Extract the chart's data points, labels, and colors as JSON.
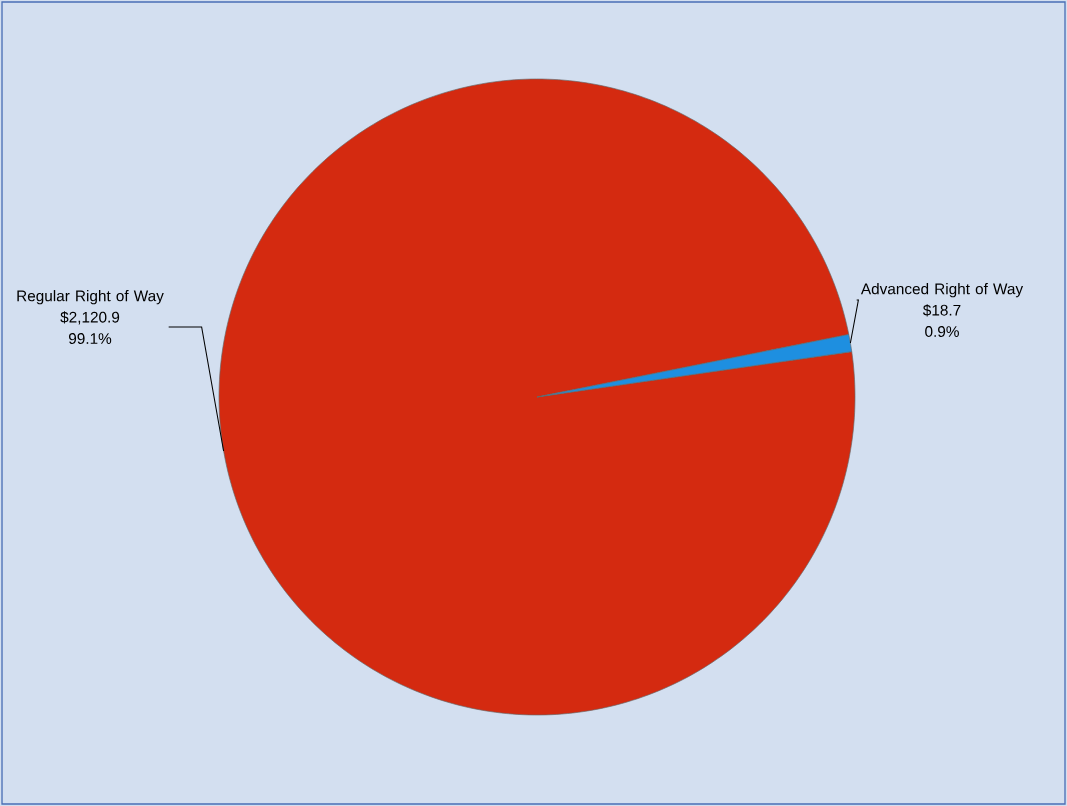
{
  "chart_data": {
    "type": "pie",
    "categories": [
      "Regular Right of Way",
      "Advanced Right of Way"
    ],
    "values": [
      2120.9,
      18.7
    ],
    "colors": [
      "#d42a10",
      "#1e8fe0"
    ],
    "value_labels": [
      "$2,120.9",
      "$18.7"
    ],
    "annotations": [
      {
        "text": "99.1%",
        "x": "Regular Right of Way"
      },
      {
        "text": "0.9%",
        "x": "Advanced Right of Way"
      }
    ]
  }
}
